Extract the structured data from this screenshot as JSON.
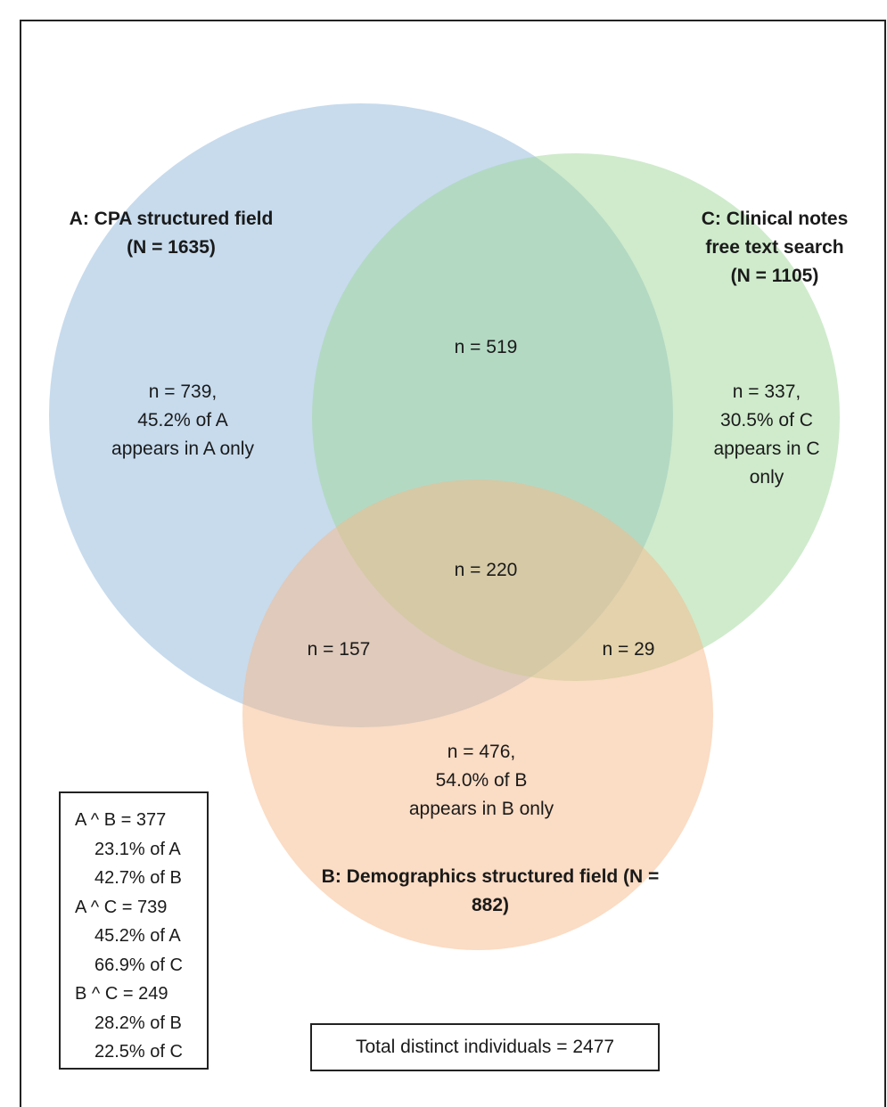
{
  "sets": {
    "A": {
      "title": "A: CPA structured field",
      "size": "(N = 1635)",
      "color": "#8fb8dc"
    },
    "B": {
      "title_line1": "B: Demographics structured field (N =",
      "title_line2": "882)",
      "color": "#f8b98a"
    },
    "C": {
      "title_line1": "C: Clinical notes",
      "title_line2": "free text search",
      "size": "(N = 1105)",
      "color": "#9fd89a"
    }
  },
  "regions": {
    "A_only": {
      "line1": "n = 739,",
      "line2": "45.2% of A",
      "line3": "appears in A only"
    },
    "C_only": {
      "line1": "n = 337,",
      "line2": "30.5% of C",
      "line3": "appears in C",
      "line4": "only"
    },
    "B_only": {
      "line1": "n = 476,",
      "line2": "54.0% of B",
      "line3": "appears in B only"
    },
    "AC_only": "n = 519",
    "ABC": "n = 220",
    "AB_only": "n = 157",
    "BC_only": "n = 29"
  },
  "summary": [
    {
      "text": "A ^ B = 377",
      "indent": false
    },
    {
      "text": "23.1% of A",
      "indent": true
    },
    {
      "text": "42.7% of B",
      "indent": true
    },
    {
      "text": "A ^ C = 739",
      "indent": false
    },
    {
      "text": "45.2% of A",
      "indent": true
    },
    {
      "text": "66.9% of C",
      "indent": true
    },
    {
      "text": "B ^ C = 249",
      "indent": false
    },
    {
      "text": "28.2% of B",
      "indent": true
    },
    {
      "text": "22.5% of C",
      "indent": true
    }
  ],
  "total": "Total distinct individuals = 2477"
}
